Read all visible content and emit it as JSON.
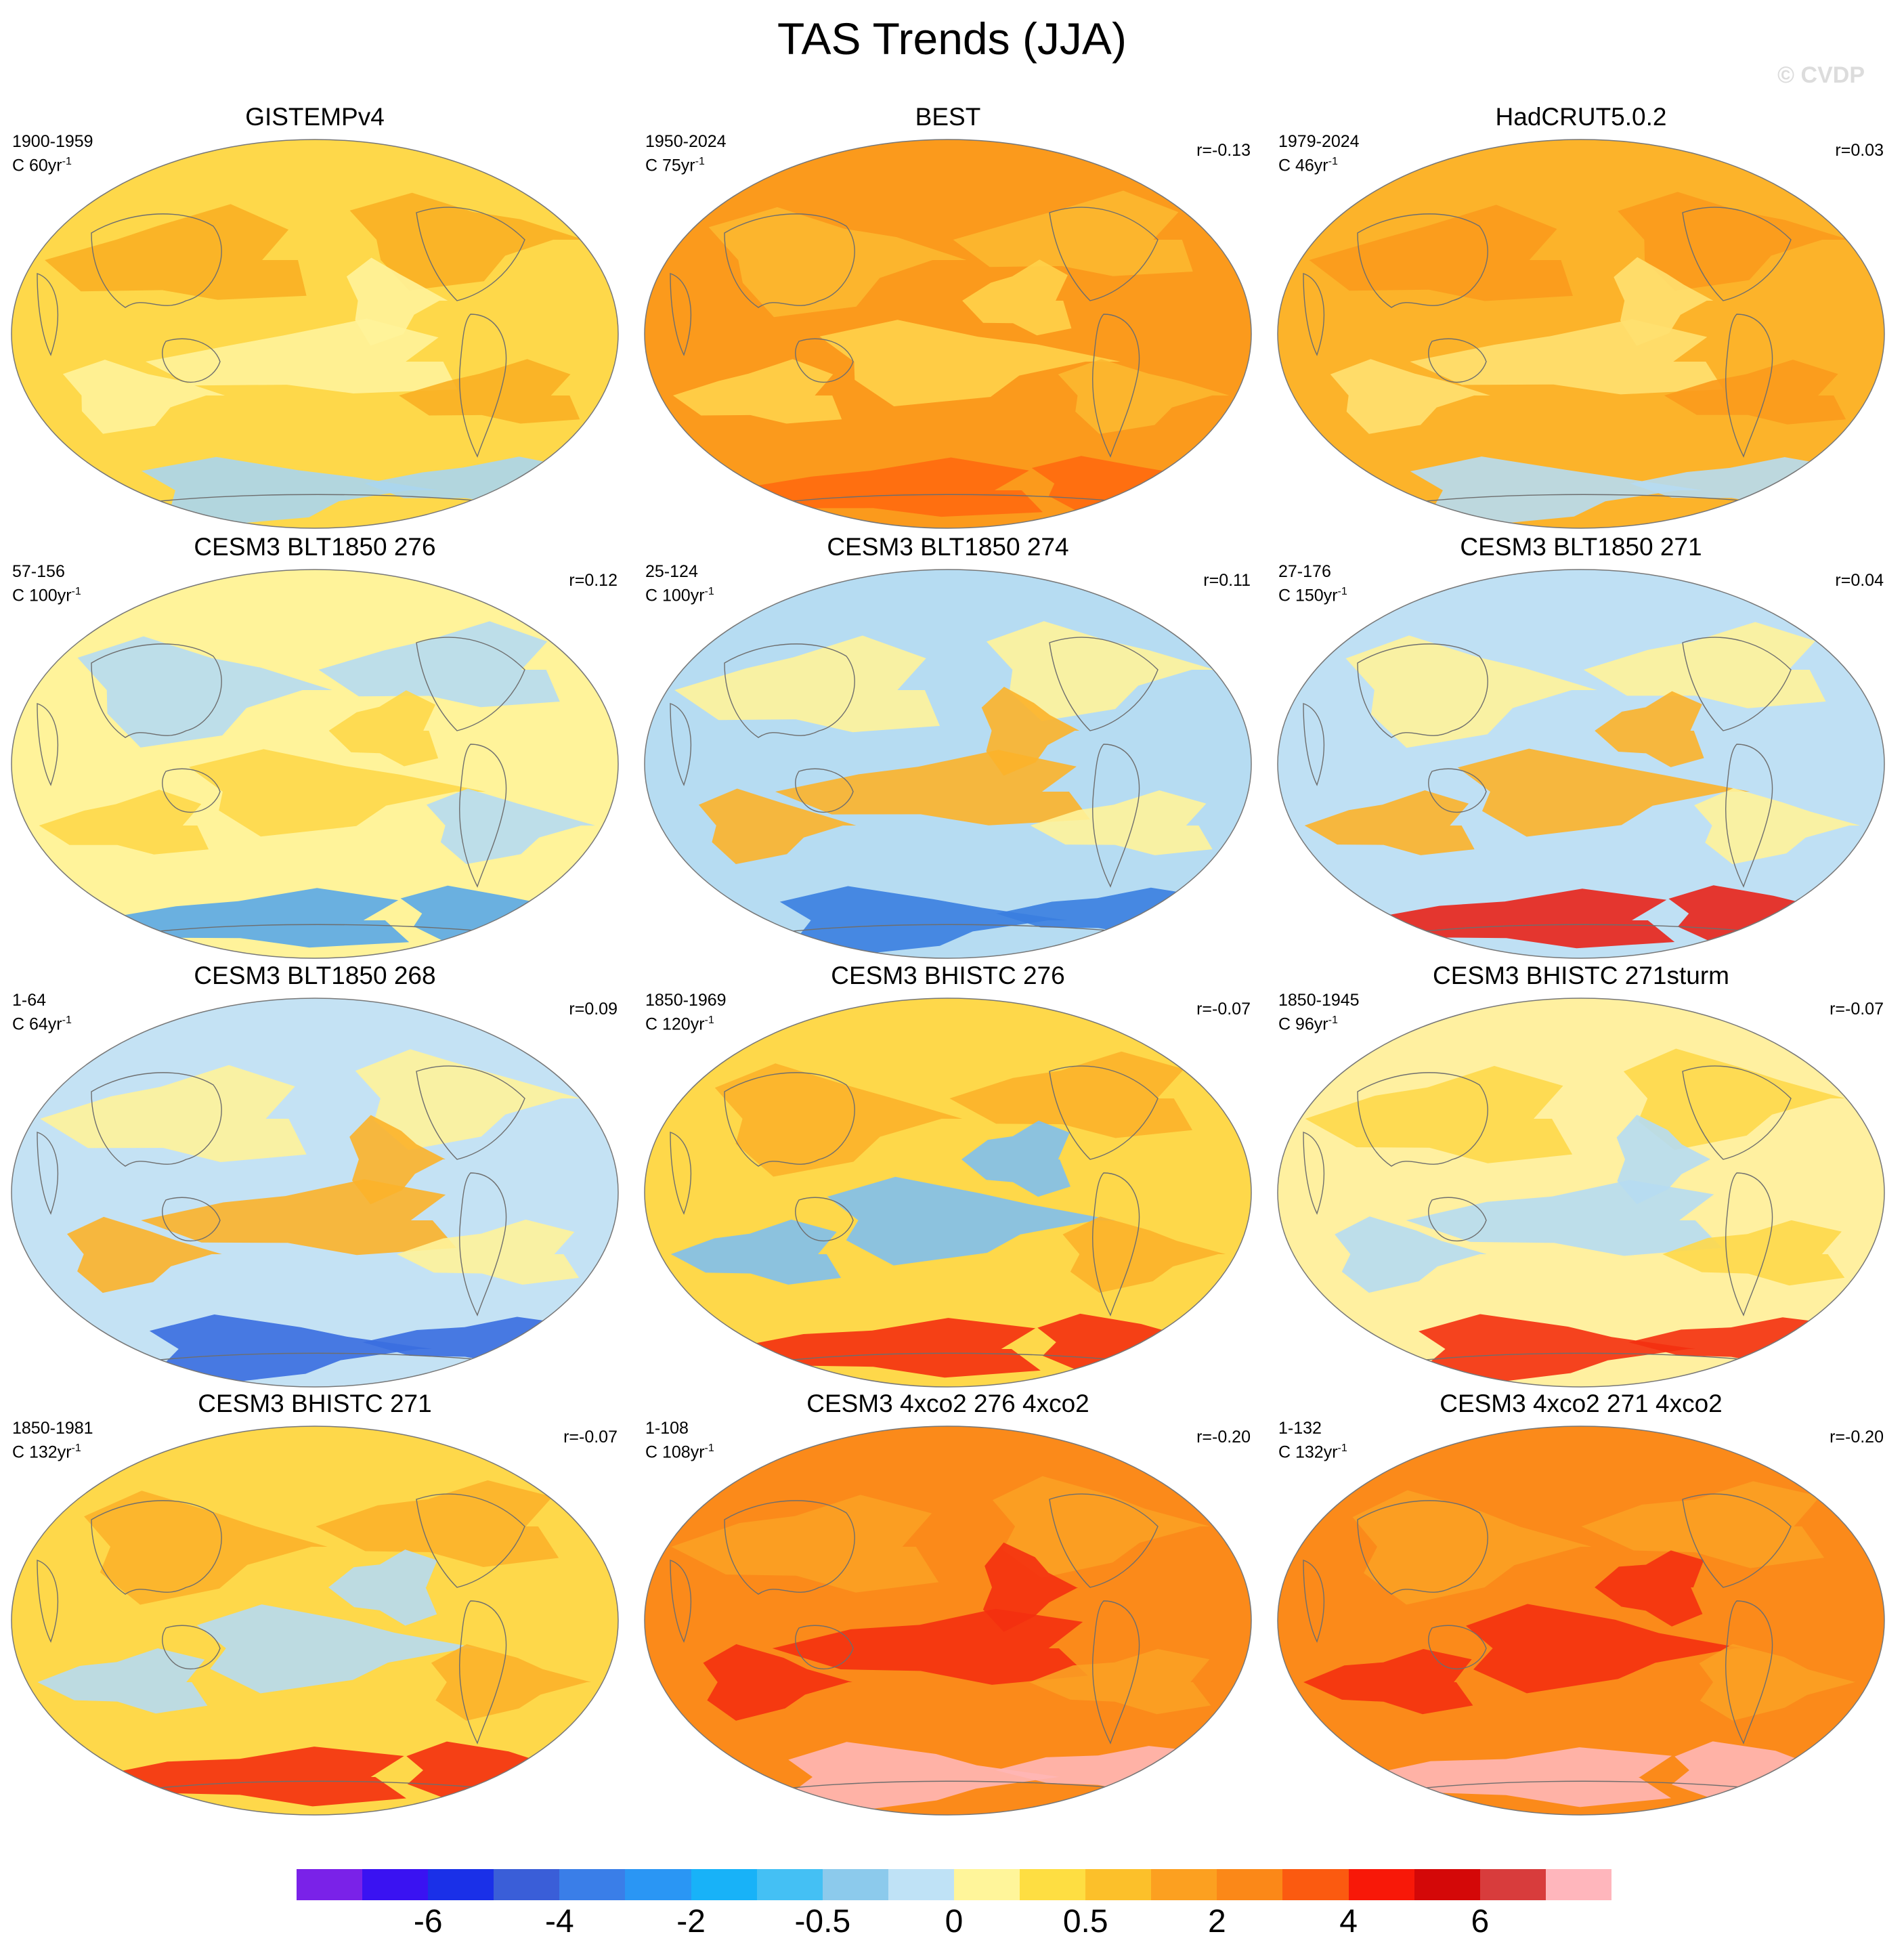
{
  "title": "TAS Trends (JJA)",
  "watermark": "© CVDP",
  "panels": [
    {
      "title": "GISTEMPv4",
      "years": "1900-1959",
      "trend": "C 60yr",
      "trend_sup": "-1",
      "corr": "",
      "colors": {
        "bg": "#fed84a",
        "a": "#f9b024",
        "b": "#fff39a",
        "c": "#aad6ee"
      }
    },
    {
      "title": "BEST",
      "years": "1950-2024",
      "trend": "C 75yr",
      "trend_sup": "-1",
      "corr": "r=-0.13",
      "colors": {
        "bg": "#fb9a1c",
        "a": "#fcb830",
        "b": "#ffd24a",
        "c": "#ff6a10"
      }
    },
    {
      "title": "HadCRUT5.0.2",
      "years": "1979-2024",
      "trend": "C 46yr",
      "trend_sup": "-1",
      "corr": "r=0.03",
      "colors": {
        "bg": "#fcb32a",
        "a": "#fb9a1c",
        "b": "#ffe070",
        "c": "#b6dcf2"
      }
    },
    {
      "title": "CESM3 BLT1850 276",
      "years": "57-156",
      "trend": "C 100yr",
      "trend_sup": "-1",
      "corr": "r=0.12",
      "colors": {
        "bg": "#fff39a",
        "a": "#b6dcf2",
        "b": "#fed84a",
        "c": "#5aa8e8"
      }
    },
    {
      "title": "CESM3 BLT1850 274",
      "years": "25-124",
      "trend": "C 100yr",
      "trend_sup": "-1",
      "corr": "r=0.11",
      "colors": {
        "bg": "#b6dcf2",
        "a": "#fff39a",
        "b": "#fcb32a",
        "c": "#3a7ee0"
      }
    },
    {
      "title": "CESM3 BLT1850 271",
      "years": "27-176",
      "trend": "C 150yr",
      "trend_sup": "-1",
      "corr": "r=0.04",
      "colors": {
        "bg": "#bfe0f4",
        "a": "#fff39a",
        "b": "#fcb32a",
        "c": "#e8241a"
      }
    },
    {
      "title": "CESM3 BLT1850 268",
      "years": "1-64",
      "trend": "C 64yr",
      "trend_sup": "-1",
      "corr": "r=0.09",
      "colors": {
        "bg": "#c4e2f4",
        "a": "#fff39a",
        "b": "#fcb32a",
        "c": "#3a6ee0"
      }
    },
    {
      "title": "CESM3 BHISTC 276",
      "years": "1850-1969",
      "trend": "C 120yr",
      "trend_sup": "-1",
      "corr": "r=-0.07",
      "colors": {
        "bg": "#fed84a",
        "a": "#fcb32a",
        "b": "#7fc0ee",
        "c": "#f43010"
      }
    },
    {
      "title": "CESM3 BHISTC 271sturm",
      "years": "1850-1945",
      "trend": "C 96yr",
      "trend_sup": "-1",
      "corr": "r=-0.07",
      "colors": {
        "bg": "#fff0a0",
        "a": "#fed84a",
        "b": "#b6dcf2",
        "c": "#f43010"
      }
    },
    {
      "title": "CESM3 BHISTC 271",
      "years": "1850-1981",
      "trend": "C 132yr",
      "trend_sup": "-1",
      "corr": "r=-0.07",
      "colors": {
        "bg": "#fed84a",
        "a": "#fcb32a",
        "b": "#b6dcf2",
        "c": "#f43010"
      }
    },
    {
      "title": "CESM3 4xco2 276 4xco2",
      "years": "1-108",
      "trend": "C 108yr",
      "trend_sup": "-1",
      "corr": "r=-0.20",
      "colors": {
        "bg": "#fb8a1a",
        "a": "#fba024",
        "b": "#f43010",
        "c": "#ffb6b6"
      }
    },
    {
      "title": "CESM3 4xco2 271 4xco2",
      "years": "1-132",
      "trend": "C 132yr",
      "trend_sup": "-1",
      "corr": "r=-0.20",
      "colors": {
        "bg": "#fb8a1a",
        "a": "#fba024",
        "b": "#f43010",
        "c": "#ffb6b6"
      }
    }
  ],
  "colorbar": {
    "colors": [
      "#7a22e8",
      "#3a12f2",
      "#1a30e8",
      "#3a5ed8",
      "#3a7ee8",
      "#2a96f4",
      "#18b2f8",
      "#44c0f4",
      "#8ccaec",
      "#bfe2f6",
      "#fff59a",
      "#fede42",
      "#fcc02a",
      "#fca020",
      "#fb8818",
      "#fb5a10",
      "#f81808",
      "#d40808",
      "#d83c3c",
      "#ffb6bc"
    ],
    "labels": [
      "-6",
      "-4",
      "-2",
      "-0.5",
      "0",
      "0.5",
      "2",
      "4",
      "6"
    ],
    "label_index": [
      2,
      4,
      6,
      8,
      10,
      12,
      14,
      16,
      18
    ]
  }
}
